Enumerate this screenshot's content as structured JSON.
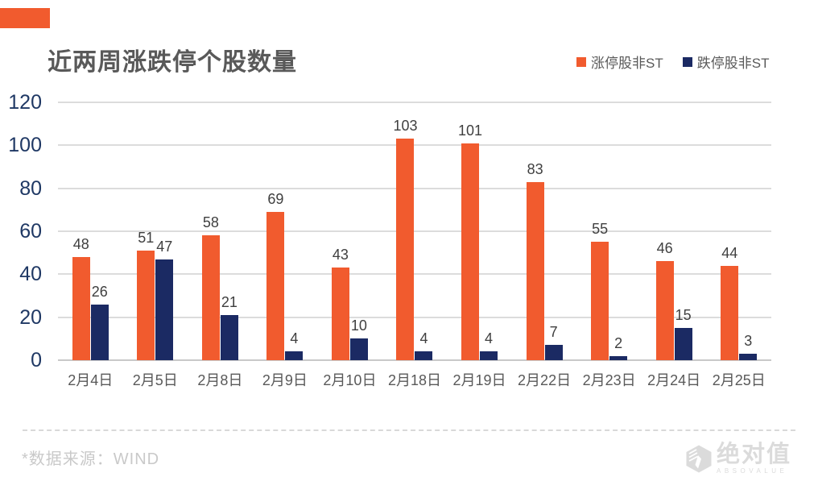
{
  "title": "近两周涨跌停个股数量",
  "accent_color": "#F15B2E",
  "legend": [
    {
      "label": "涨停股非ST",
      "color": "#F15B2E"
    },
    {
      "label": "跌停股非ST",
      "color": "#1B2A63"
    }
  ],
  "chart_data": {
    "type": "bar",
    "title": "近两周涨跌停个股数量",
    "categories": [
      "2月4日",
      "2月5日",
      "2月8日",
      "2月9日",
      "2月10日",
      "2月18日",
      "2月19日",
      "2月22日",
      "2月23日",
      "2月24日",
      "2月25日"
    ],
    "series": [
      {
        "name": "涨停股非ST",
        "color": "#F15B2E",
        "values": [
          48,
          51,
          58,
          69,
          43,
          103,
          101,
          83,
          55,
          46,
          44
        ]
      },
      {
        "name": "跌停股非ST",
        "color": "#1B2A63",
        "values": [
          26,
          47,
          21,
          4,
          10,
          4,
          4,
          7,
          2,
          15,
          3
        ]
      }
    ],
    "xlabel": "",
    "ylabel": "",
    "ylim": [
      0,
      120
    ],
    "yticks": [
      0,
      20,
      40,
      60,
      80,
      100,
      120
    ],
    "grid": true,
    "data_labels": true,
    "legend_position": "top-right"
  },
  "footnote": "*数据来源：WIND",
  "watermark": {
    "name": "绝对值",
    "subtext": "ABSOVALUE"
  }
}
